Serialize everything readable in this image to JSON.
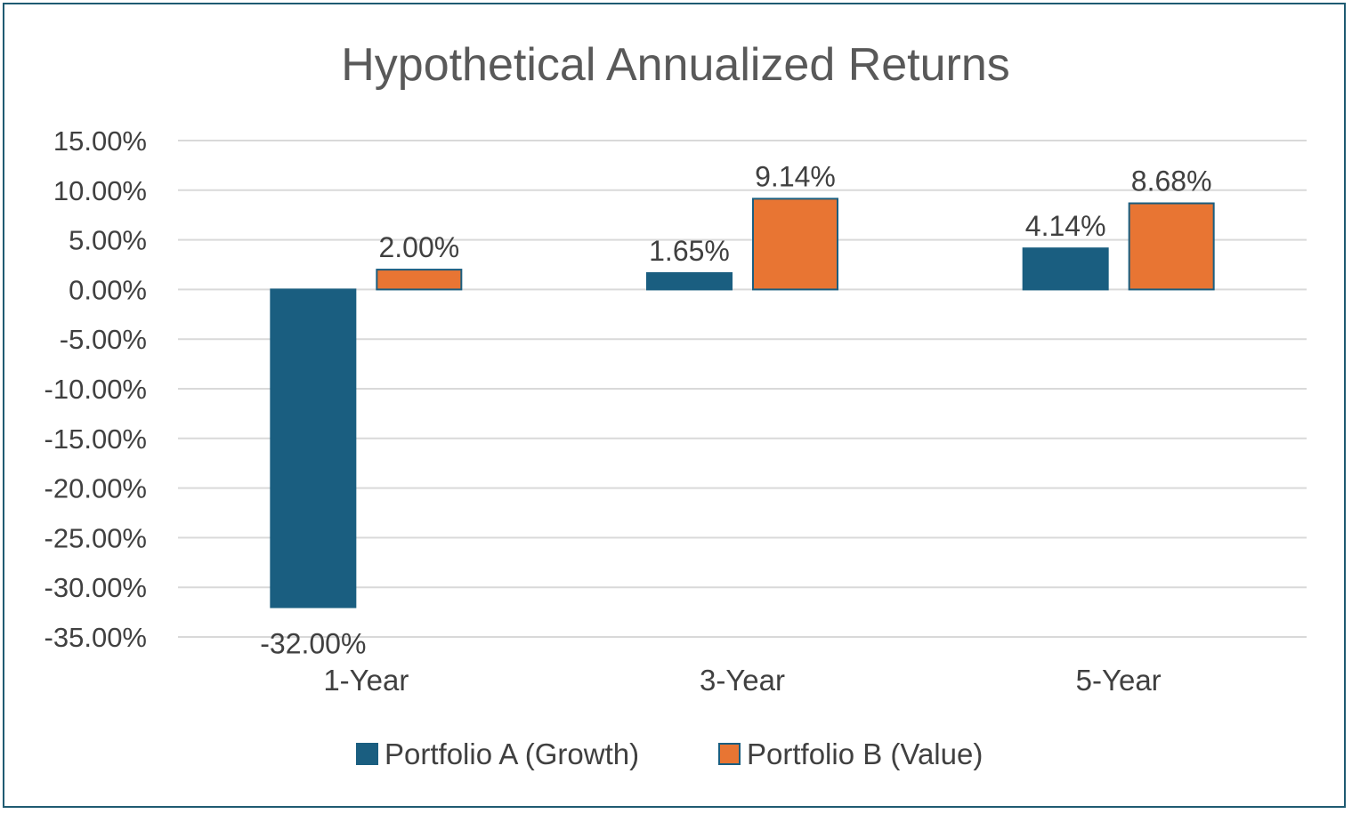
{
  "chart_data": {
    "type": "bar",
    "title": "Hypothetical Annualized Returns",
    "categories": [
      "1-Year",
      "3-Year",
      "5-Year"
    ],
    "series": [
      {
        "name": "Portfolio A (Growth)",
        "color": "#1a5e80",
        "values": [
          -32.0,
          1.65,
          4.14
        ],
        "labels": [
          "-32.00%",
          "1.65%",
          "4.14%"
        ]
      },
      {
        "name": "Portfolio B (Value)",
        "color": "#e87533",
        "values": [
          2.0,
          9.14,
          8.68
        ],
        "labels": [
          "2.00%",
          "9.14%",
          "8.68%"
        ]
      }
    ],
    "ylim": [
      -35,
      15
    ],
    "yticks": [
      15,
      10,
      5,
      0,
      -5,
      -10,
      -15,
      -20,
      -25,
      -30,
      -35
    ],
    "ytick_labels": [
      "15.00%",
      "10.00%",
      "5.00%",
      "0.00%",
      "-5.00%",
      "-10.00%",
      "-15.00%",
      "-20.00%",
      "-25.00%",
      "-30.00%",
      "-35.00%"
    ],
    "xlabel": "",
    "ylabel": "",
    "grid": true,
    "legend_position": "bottom",
    "frame_color": "#1f5b72"
  }
}
